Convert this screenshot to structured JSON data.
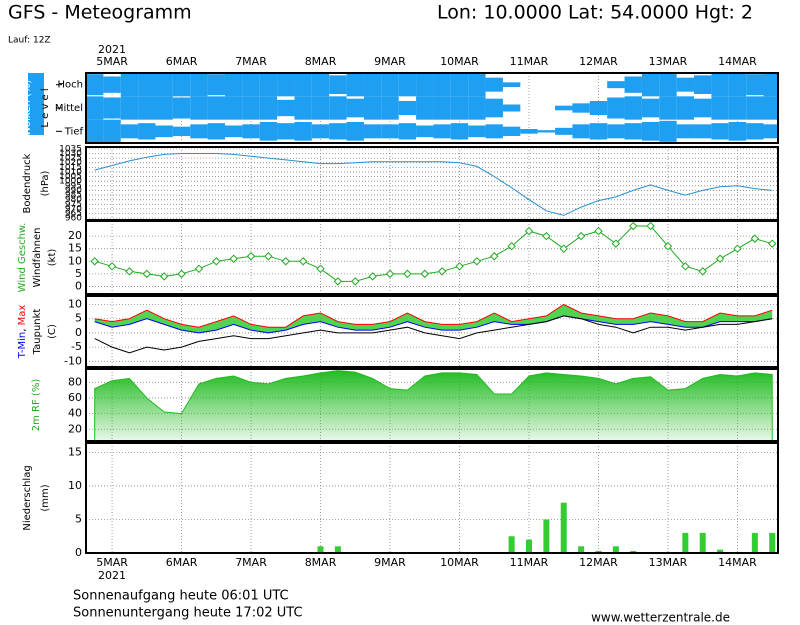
{
  "header": {
    "title": "GFS - Meteogramm",
    "location": "Lon: 10.0000  Lat: 54.0000  Hgt: 2",
    "run": "Lauf: 12Z"
  },
  "time_axis": {
    "year": "2021",
    "xlim": [
      -9,
      230
    ],
    "xticks": [
      {
        "value": 0,
        "label": "5MAR"
      },
      {
        "value": 24,
        "label": "6MAR"
      },
      {
        "value": 48,
        "label": "7MAR"
      },
      {
        "value": 72,
        "label": "8MAR"
      },
      {
        "value": 96,
        "label": "9MAR"
      },
      {
        "value": 120,
        "label": "10MAR"
      },
      {
        "value": 144,
        "label": "11MAR"
      },
      {
        "value": 168,
        "label": "12MAR"
      },
      {
        "value": 192,
        "label": "13MAR"
      },
      {
        "value": 216,
        "label": "14MAR"
      }
    ],
    "x": [
      -6,
      0,
      6,
      12,
      18,
      24,
      30,
      36,
      42,
      48,
      54,
      60,
      66,
      72,
      78,
      84,
      90,
      96,
      102,
      108,
      114,
      120,
      126,
      132,
      138,
      144,
      150,
      156,
      162,
      168,
      174,
      180,
      186,
      192,
      198,
      204,
      210,
      216,
      222,
      228
    ]
  },
  "chart_data": [
    {
      "type": "heatmap",
      "ylabel": [
        [
          {
            "text": "Wolken (%)",
            "color": "#ffffff"
          }
        ],
        [
          {
            "text": "L e v e l",
            "color": "#000000"
          }
        ]
      ],
      "ylabel_background": "#1e9ff2",
      "series": [
        {
          "name": "Hoch",
          "color": "#1e9ff2",
          "values": [
            90,
            70,
            100,
            100,
            100,
            100,
            100,
            90,
            100,
            100,
            100,
            100,
            100,
            100,
            80,
            100,
            100,
            100,
            100,
            100,
            100,
            100,
            100,
            60,
            20,
            0,
            0,
            0,
            0,
            0,
            30,
            70,
            100,
            100,
            60,
            80,
            100,
            100,
            90,
            100
          ]
        },
        {
          "name": "Mittel",
          "color": "#1e9ff2",
          "values": [
            100,
            90,
            100,
            100,
            100,
            90,
            100,
            100,
            100,
            100,
            100,
            70,
            100,
            100,
            100,
            80,
            100,
            100,
            60,
            100,
            100,
            100,
            100,
            80,
            30,
            0,
            0,
            20,
            40,
            60,
            90,
            100,
            80,
            100,
            100,
            80,
            100,
            100,
            100,
            100
          ]
        },
        {
          "name": "Tief",
          "color": "#1e9ff2",
          "values": [
            100,
            100,
            60,
            70,
            50,
            40,
            60,
            70,
            50,
            60,
            80,
            70,
            80,
            60,
            70,
            80,
            60,
            60,
            70,
            50,
            60,
            70,
            50,
            60,
            40,
            20,
            10,
            30,
            60,
            70,
            60,
            70,
            80,
            90,
            60,
            60,
            70,
            80,
            70,
            60
          ]
        }
      ]
    },
    {
      "type": "line",
      "ylabel": [
        [
          {
            "text": "Bodendruck",
            "color": "#000000"
          }
        ],
        [
          {
            "text": "(hPa)",
            "color": "#000000"
          }
        ]
      ],
      "ylim": [
        958,
        1037
      ],
      "yticks": [
        960,
        965,
        970,
        975,
        980,
        985,
        990,
        995,
        1000,
        1005,
        1010,
        1015,
        1020,
        1025,
        1030,
        1035
      ],
      "grid": true,
      "series": [
        {
          "name": "Bodendruck",
          "color": "#2a8fd0",
          "values": [
            1012,
            1017,
            1022,
            1026,
            1029,
            1030,
            1030,
            1030,
            1029,
            1027,
            1025,
            1023,
            1021,
            1019,
            1019,
            1020,
            1021,
            1021,
            1021,
            1021,
            1021,
            1020,
            1016,
            1005,
            993,
            980,
            968,
            963,
            972,
            979,
            983,
            990,
            996,
            990,
            985,
            990,
            994,
            995,
            992,
            990
          ]
        }
      ]
    },
    {
      "type": "line",
      "ylabel": [
        [
          {
            "text": "Wind Geschw.",
            "color": "#22aa22"
          }
        ],
        [
          {
            "text": "Windfahnen",
            "color": "#000000"
          }
        ],
        [
          {
            "text": "(kt)",
            "color": "#000000"
          }
        ]
      ],
      "ylim": [
        -3,
        26
      ],
      "yticks": [
        0,
        5,
        10,
        15,
        20
      ],
      "grid": true,
      "markers": true,
      "series": [
        {
          "name": "Wind Geschw.",
          "color": "#22aa22",
          "values": [
            10,
            8,
            6,
            5,
            4,
            5,
            7,
            10,
            11,
            12,
            12,
            10,
            10,
            7,
            2,
            2,
            4,
            5,
            5,
            5,
            6,
            8,
            10,
            12,
            16,
            22,
            20,
            15,
            20,
            22,
            17,
            24,
            24,
            16,
            8,
            6,
            11,
            15,
            19,
            17
          ]
        }
      ]
    },
    {
      "type": "line",
      "ylabel": [
        [
          {
            "text": "T-Min",
            "color": "#0000ff"
          },
          {
            "text": ", ",
            "color": "#000000"
          },
          {
            "text": "Max",
            "color": "#ff0000"
          }
        ],
        [
          {
            "text": "Taupunkt",
            "color": "#000000"
          }
        ],
        [
          {
            "text": "(C)",
            "color": "#000000"
          }
        ]
      ],
      "ylim": [
        -12,
        13
      ],
      "yticks": [
        -10,
        -5,
        0,
        5,
        10
      ],
      "grid": true,
      "fill_color": "#33cc33",
      "series": [
        {
          "name": "Min",
          "color": "#0000ff",
          "values": [
            4,
            2,
            3,
            5,
            3,
            1,
            0,
            1,
            3,
            1,
            0,
            1,
            3,
            4,
            2,
            1,
            1,
            2,
            4,
            2,
            1,
            1,
            2,
            4,
            3,
            3,
            4,
            6,
            5,
            4,
            3,
            3,
            4,
            3,
            2,
            2,
            4,
            4,
            4,
            5
          ]
        },
        {
          "name": "Max",
          "color": "#ff0000",
          "values": [
            5,
            4,
            5,
            8,
            5,
            3,
            2,
            4,
            6,
            3,
            2,
            2,
            6,
            7,
            4,
            3,
            3,
            4,
            7,
            4,
            3,
            3,
            4,
            7,
            4,
            5,
            6,
            10,
            7,
            6,
            5,
            5,
            7,
            6,
            4,
            4,
            7,
            6,
            6,
            8
          ]
        },
        {
          "name": "Taupunkt",
          "color": "#000000",
          "values": [
            -2,
            -5,
            -7,
            -5,
            -6,
            -5,
            -3,
            -2,
            -1,
            -2,
            -2,
            -1,
            0,
            1,
            0,
            0,
            0,
            1,
            2,
            0,
            -1,
            -2,
            0,
            1,
            2,
            3,
            4,
            6,
            5,
            3,
            2,
            0,
            2,
            2,
            1,
            2,
            3,
            3,
            4,
            5
          ]
        }
      ]
    },
    {
      "type": "area",
      "ylabel": [
        [
          {
            "text": "2m RF (%)",
            "color": "#22aa22"
          }
        ]
      ],
      "ylim": [
        5,
        97
      ],
      "yticks": [
        20,
        40,
        60,
        80
      ],
      "grid": true,
      "series": [
        {
          "name": "2m RF",
          "color": "#22bb22",
          "values": [
            72,
            82,
            85,
            60,
            42,
            40,
            78,
            85,
            88,
            80,
            78,
            85,
            88,
            92,
            95,
            93,
            85,
            72,
            70,
            88,
            92,
            92,
            90,
            65,
            65,
            88,
            92,
            90,
            88,
            85,
            78,
            85,
            87,
            70,
            72,
            85,
            90,
            88,
            92,
            90
          ]
        }
      ]
    },
    {
      "type": "bar",
      "ylabel": [
        [
          {
            "text": "Niederschlag",
            "color": "#000000"
          }
        ],
        [
          {
            "text": "(mm)",
            "color": "#000000"
          }
        ]
      ],
      "ylim": [
        0,
        16.4
      ],
      "yticks": [
        0,
        5,
        10,
        15
      ],
      "grid": true,
      "series": [
        {
          "name": "Niederschlag",
          "color": "#33cc33",
          "values": [
            0,
            0,
            0,
            0,
            0,
            0,
            0,
            0,
            0,
            0,
            0,
            0,
            0,
            1,
            1,
            0,
            0,
            0,
            0,
            0,
            0,
            0,
            0,
            0,
            2.5,
            2,
            5,
            7.5,
            1,
            0.3,
            1,
            0.3,
            0,
            0,
            3,
            3,
            0.5,
            0,
            3,
            3
          ]
        }
      ]
    }
  ],
  "footer": {
    "sunrise": "Sonnenaufgang heute 06:01 UTC",
    "sunset": "Sonnenuntergang heute 17:02 UTC",
    "source": "www.wetterzentrale.de"
  }
}
